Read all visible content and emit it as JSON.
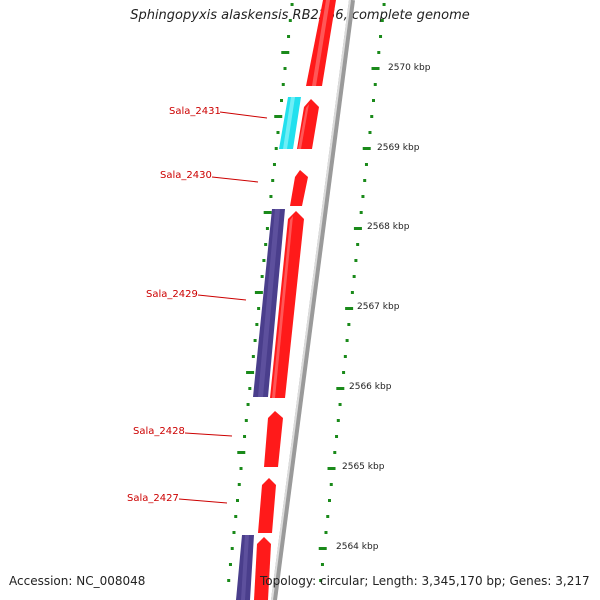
{
  "title": "Sphingopyxis alaskensis RB2256, complete genome",
  "accession": "Accession: NC_008048",
  "summary": "Topology: circular; Length: 3,345,170 bp; Genes: 3,217",
  "colors": {
    "forward_cds": "#ff1a1a",
    "reverse_cds": "#4a3e8c",
    "rna": "#22e0ee",
    "backbone": "#8a8a8a",
    "tick": "#1a8a1a",
    "label": "#cc0000"
  },
  "scale": {
    "unit": "kbp",
    "ticks": [
      {
        "kbp": 2570,
        "label": "2570 kbp"
      },
      {
        "kbp": 2569,
        "label": "2569 kbp"
      },
      {
        "kbp": 2568,
        "label": "2568 kbp"
      },
      {
        "kbp": 2567,
        "label": "2567 kbp"
      },
      {
        "kbp": 2566,
        "label": "2566 kbp"
      },
      {
        "kbp": 2565,
        "label": "2565 kbp"
      },
      {
        "kbp": 2564,
        "label": "2564 kbp"
      }
    ]
  },
  "gene_labels": [
    {
      "name": "Sala_2431"
    },
    {
      "name": "Sala_2430"
    },
    {
      "name": "Sala_2429"
    },
    {
      "name": "Sala_2428"
    },
    {
      "name": "Sala_2427"
    }
  ]
}
